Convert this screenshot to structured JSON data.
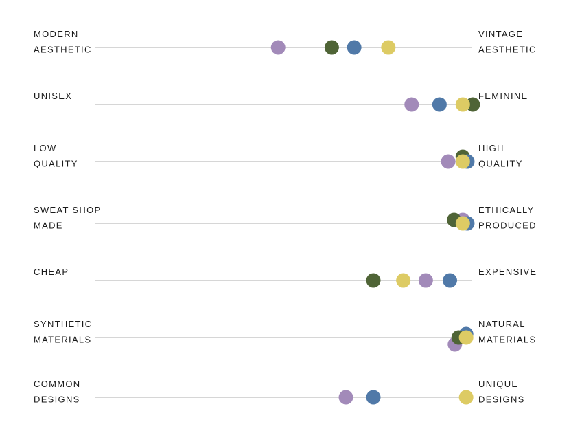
{
  "chart_data": {
    "type": "scatter",
    "x_range": [
      0,
      100
    ],
    "colors": [
      "#a28ab9",
      "#4f6436",
      "#5079a8",
      "#ddcb64"
    ],
    "rows": [
      {
        "left_label": [
          "MODERN",
          "AESTHETIC"
        ],
        "right_label": [
          "VINTAGE",
          "AESTHETIC"
        ],
        "points": [
          {
            "color": "#a28ab9",
            "x": 50.7
          },
          {
            "color": "#4f6436",
            "x": 63.6
          },
          {
            "color": "#5079a8",
            "x": 69.0
          },
          {
            "color": "#ddcb64",
            "x": 77.2
          }
        ]
      },
      {
        "left_label": [
          "UNISEX"
        ],
        "right_label": [
          "FEMININE"
        ],
        "points": [
          {
            "color": "#a28ab9",
            "x": 82.8
          },
          {
            "color": "#5079a8",
            "x": 89.5
          },
          {
            "color": "#4f6436",
            "x": 97.5
          },
          {
            "color": "#ddcb64",
            "x": 95.1
          }
        ]
      },
      {
        "left_label": [
          "LOW",
          "QUALITY"
        ],
        "right_label": [
          "HIGH",
          "QUALITY"
        ],
        "points": [
          {
            "color": "#4f6436",
            "x": 95.1,
            "dy": -7
          },
          {
            "color": "#5079a8",
            "x": 96.2
          },
          {
            "color": "#a28ab9",
            "x": 91.6
          },
          {
            "color": "#ddcb64",
            "x": 95.1
          }
        ]
      },
      {
        "left_label": [
          "SWEAT SHOP",
          "MADE"
        ],
        "right_label": [
          "ETHICALLY",
          "PRODUCED"
        ],
        "points": [
          {
            "color": "#a28ab9",
            "x": 95.1,
            "dy": -5
          },
          {
            "color": "#5079a8",
            "x": 96.2
          },
          {
            "color": "#4f6436",
            "x": 93.0,
            "dy": -5
          },
          {
            "color": "#ddcb64",
            "x": 95.1
          }
        ]
      },
      {
        "left_label": [
          "CHEAP"
        ],
        "right_label": [
          "EXPENSIVE"
        ],
        "points": [
          {
            "color": "#4f6436",
            "x": 73.6
          },
          {
            "color": "#ddcb64",
            "x": 80.8
          },
          {
            "color": "#a28ab9",
            "x": 86.2
          },
          {
            "color": "#5079a8",
            "x": 92.0
          }
        ]
      },
      {
        "left_label": [
          "SYNTHETIC",
          "MATERIALS"
        ],
        "right_label": [
          "NATURAL",
          "MATERIALS"
        ],
        "points": [
          {
            "color": "#a28ab9",
            "x": 93.2,
            "dy": 10
          },
          {
            "color": "#5079a8",
            "x": 95.9,
            "dy": -5
          },
          {
            "color": "#4f6436",
            "x": 94.1
          },
          {
            "color": "#ddcb64",
            "x": 95.9
          }
        ]
      },
      {
        "left_label": [
          "COMMON",
          "DESIGNS"
        ],
        "right_label": [
          "UNIQUE",
          "DESIGNS"
        ],
        "points": [
          {
            "color": "#a28ab9",
            "x": 67.0
          },
          {
            "color": "#5079a8",
            "x": 73.6
          },
          {
            "color": "#ddcb64",
            "x": 95.9
          }
        ]
      }
    ]
  }
}
